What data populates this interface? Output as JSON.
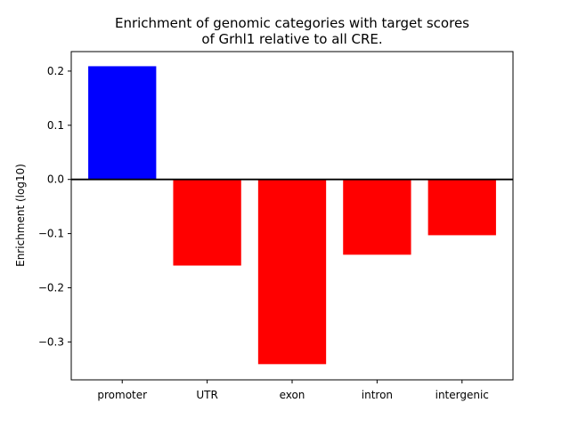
{
  "chart_data": {
    "type": "bar",
    "title_line1": "Enrichment of genomic categories with target scores",
    "title_line2": "of Grhl1 relative to all CRE.",
    "xlabel": "",
    "ylabel": "Enrichment (log10)",
    "categories": [
      "promoter",
      "UTR",
      "exon",
      "intron",
      "intergenic"
    ],
    "values": [
      0.209,
      -0.159,
      -0.341,
      -0.139,
      -0.103
    ],
    "colors": [
      "#0000ff",
      "#ff0000",
      "#ff0000",
      "#ff0000",
      "#ff0000"
    ],
    "ylim": [
      -0.37,
      0.236
    ],
    "yticks": [
      0.2,
      0.1,
      0.0,
      -0.1,
      -0.2,
      -0.3
    ],
    "ytick_labels": [
      "0.2",
      "0.1",
      "0.0",
      "−0.1",
      "−0.2",
      "−0.3"
    ],
    "baseline": 0,
    "grid": false,
    "legend": "none"
  }
}
